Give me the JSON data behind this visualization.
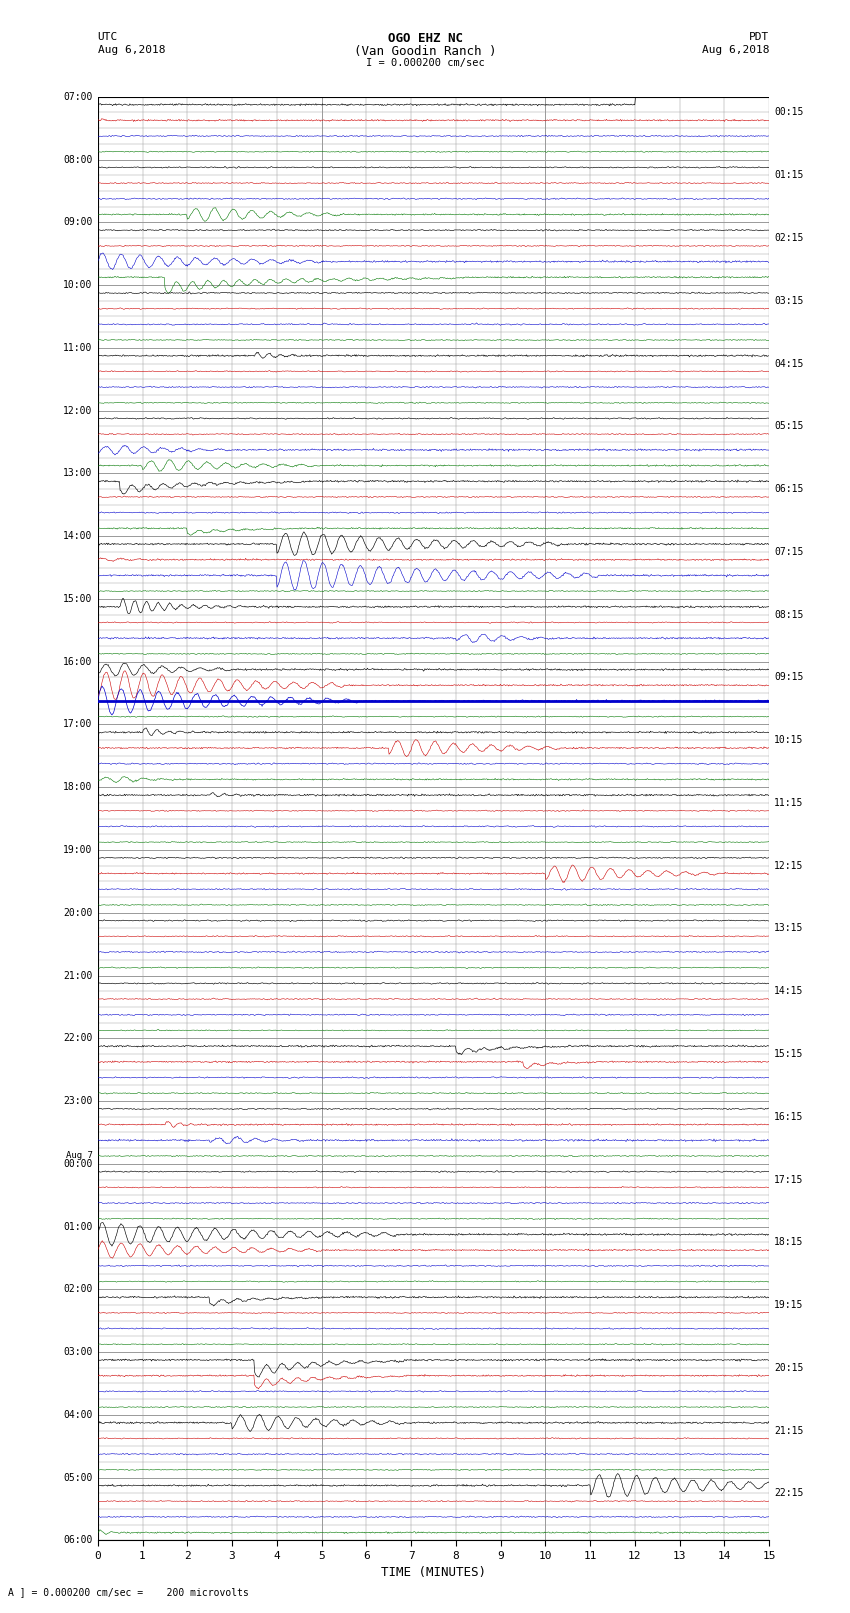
{
  "title_line1": "OGO EHZ NC",
  "title_line2": "(Van Goodin Ranch )",
  "title_line3": "I = 0.000200 cm/sec",
  "left_label_top": "UTC",
  "left_label_date": "Aug 6,2018",
  "right_label_top": "PDT",
  "right_label_date": "Aug 6,2018",
  "xlabel": "TIME (MINUTES)",
  "bottom_note": "A ] = 0.000200 cm/sec =    200 microvolts",
  "bg_color": "#ffffff",
  "grid_color": "#999999",
  "trace_colors": [
    "#000000",
    "#cc0000",
    "#0000cc",
    "#007700"
  ],
  "fig_width": 8.5,
  "fig_height": 16.13
}
